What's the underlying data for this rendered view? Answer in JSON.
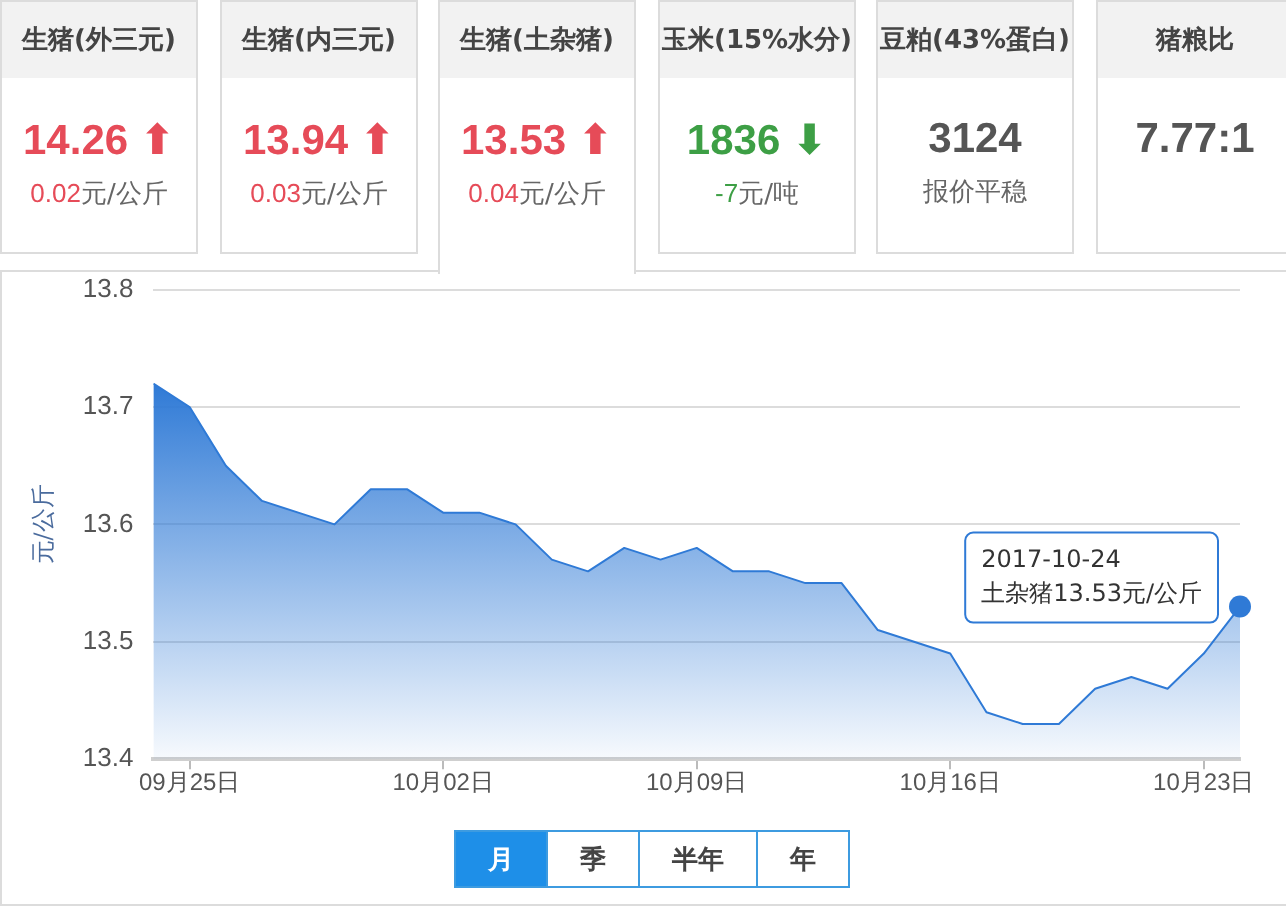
{
  "chart_data": [
    {
      "type": "other",
      "title": "生猪(外三元)",
      "annotations": [
        "14.26 ⬆",
        "0.02",
        "元/公斤"
      ],
      "color": "#e64b58"
    },
    {
      "type": "other",
      "title": "生猪(内三元)",
      "annotations": [
        "13.94 ⬆",
        "0.03",
        "元/公斤"
      ],
      "color": "#e64b58"
    },
    {
      "type": "other",
      "title": "生猪(土杂猪)",
      "annotations": [
        "13.53 ⬆",
        "0.04",
        "元/公斤"
      ],
      "color": "#e64b58"
    },
    {
      "type": "other",
      "title": "玉米(15%水分)",
      "annotations": [
        "1836 ⬇",
        "-7",
        "元/吨"
      ],
      "color": "#3d9f45"
    },
    {
      "type": "other",
      "title": "豆粕(43%蛋白)",
      "annotations": [
        "3124",
        "报价平稳"
      ],
      "color": "#555555"
    },
    {
      "type": "other",
      "title": "猪粮比",
      "annotations": [
        "7.77:1"
      ],
      "color": "#555555"
    },
    {
      "type": "area",
      "ylabel": "元/公斤",
      "x": [
        "2017-09-24",
        "2017-09-25",
        "2017-09-26",
        "2017-09-27",
        "2017-09-28",
        "2017-09-29",
        "2017-09-30",
        "2017-10-01",
        "2017-10-02",
        "2017-10-03",
        "2017-10-04",
        "2017-10-05",
        "2017-10-06",
        "2017-10-07",
        "2017-10-08",
        "2017-10-09",
        "2017-10-10",
        "2017-10-11",
        "2017-10-12",
        "2017-10-13",
        "2017-10-14",
        "2017-10-15",
        "2017-10-16",
        "2017-10-17",
        "2017-10-18",
        "2017-10-19",
        "2017-10-20",
        "2017-10-21",
        "2017-10-22",
        "2017-10-23",
        "2017-10-24"
      ],
      "values": [
        13.72,
        13.7,
        13.65,
        13.62,
        13.61,
        13.6,
        13.63,
        13.63,
        13.61,
        13.61,
        13.6,
        13.57,
        13.56,
        13.58,
        13.57,
        13.58,
        13.56,
        13.56,
        13.55,
        13.55,
        13.51,
        13.5,
        13.49,
        13.44,
        13.43,
        13.43,
        13.46,
        13.47,
        13.46,
        13.49,
        13.53
      ],
      "color": "#2f7ad6",
      "xlim": [
        "2017-09-24",
        "2017-10-24"
      ],
      "xticks": [
        {
          "value": "2017-09-25",
          "label": "09月25日"
        },
        {
          "value": "2017-10-02",
          "label": "10月02日"
        },
        {
          "value": "2017-10-09",
          "label": "10月09日"
        },
        {
          "value": "2017-10-16",
          "label": "10月16日"
        },
        {
          "value": "2017-10-23",
          "label": "10月23日"
        }
      ],
      "ylim": [
        13.4,
        13.8
      ],
      "yticks": [
        13.4,
        13.5,
        13.6,
        13.7,
        13.8
      ],
      "grid": "y",
      "annotations": [
        {
          "text": "2017-10-24\n土杂猪13.53元/公斤",
          "x": "2017-10-24",
          "y": 13.53
        }
      ]
    },
    {
      "type": "other",
      "annotations": [
        "月",
        "季",
        "半年",
        "年"
      ]
    }
  ]
}
